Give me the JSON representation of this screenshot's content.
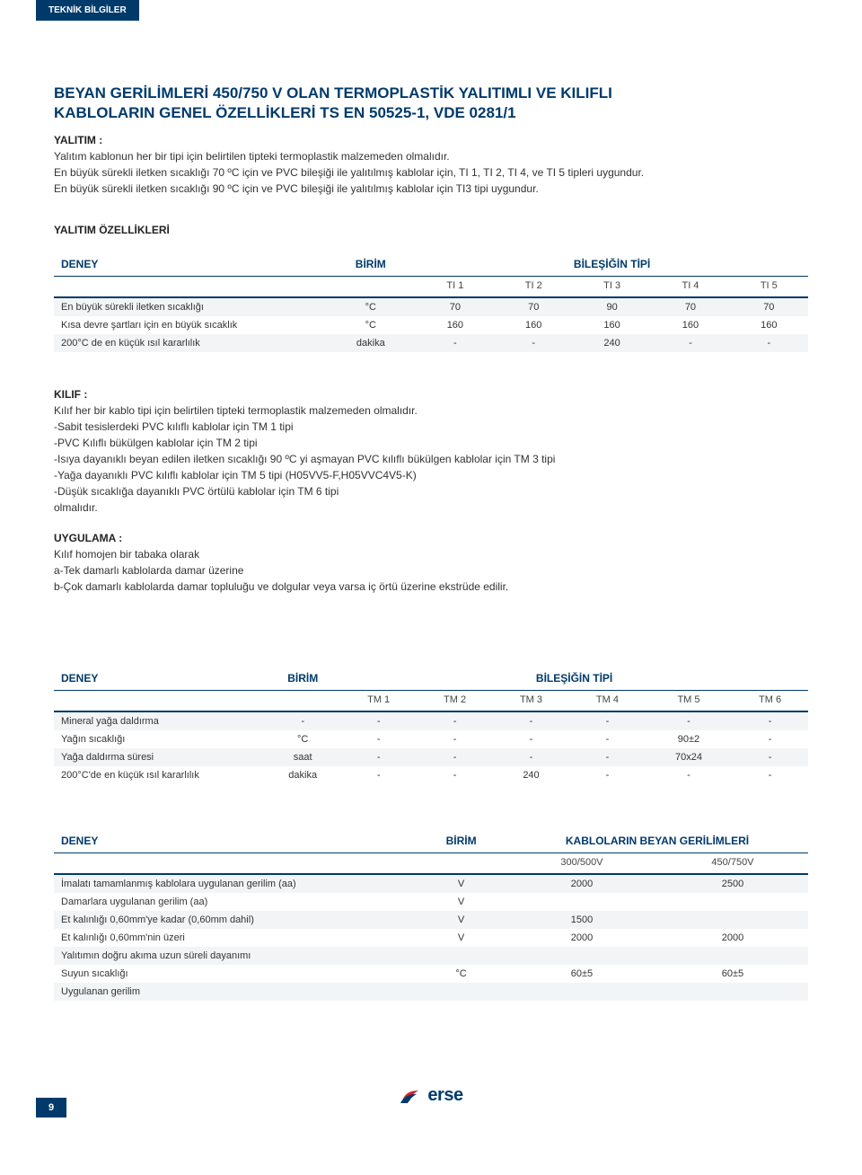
{
  "header_tab": "TEKNİK BİLGİLER",
  "title_line1": "BEYAN GERİLİMLERİ 450/750 V OLAN TERMOPLASTİK YALITIMLI VE KILIFLI",
  "title_line2": "KABLOLARIN GENEL ÖZELLİKLERİ TS EN 50525-1, VDE 0281/1",
  "yalitim_label": "YALITIM :",
  "yalitim_text": "Yalıtım kablonun her bir tipi için belirtilen tipteki termoplastik malzemeden olmalıdır.\nEn büyük sürekli iletken sıcaklığı 70 ºC için ve PVC bileşiği ile yalıtılmış kablolar için, TI 1, TI 2, TI 4, ve TI 5 tipleri uygundur.\nEn büyük sürekli iletken sıcaklığı 90 ºC için ve PVC bileşiği ile yalıtılmış kablolar için TI3 tipi uygundur.",
  "yalitim_ozel_label": "YALITIM ÖZELLİKLERİ",
  "table1": {
    "hdr_deney": "DENEY",
    "hdr_birim": "BİRİM",
    "hdr_tipi": "BİLEŞİĞİN TİPİ",
    "sub": [
      "TI 1",
      "TI 2",
      "TI 3",
      "TI 4",
      "TI 5"
    ],
    "rows": [
      {
        "label": "En büyük sürekli iletken sıcaklığı",
        "unit": "°C",
        "vals": [
          "70",
          "70",
          "90",
          "70",
          "70"
        ],
        "zebra": true
      },
      {
        "label": "Kısa devre şartları için en büyük sıcaklık",
        "unit": "°C",
        "vals": [
          "160",
          "160",
          "160",
          "160",
          "160"
        ],
        "zebra": false
      },
      {
        "label": "200°C de en küçük ısıl kararlılık",
        "unit": "dakika",
        "vals": [
          "-",
          "-",
          "240",
          "-",
          "-"
        ],
        "zebra": true
      }
    ]
  },
  "kilif_label": "KILIF :",
  "kilif_text": "Kılıf her bir kablo tipi için belirtilen tipteki termoplastik malzemeden olmalıdır.\n-Sabit tesislerdeki PVC kılıflı kablolar için TM 1 tipi\n-PVC Kılıflı bükülgen kablolar için TM 2 tipi\n-Isıya dayanıklı beyan edilen iletken sıcaklığı 90 ºC yi aşmayan PVC kılıflı bükülgen kablolar için TM 3 tipi\n-Yağa dayanıklı PVC kılıflı kablolar için TM 5 tipi (H05VV5-F,H05VVC4V5-K)\n-Düşük sıcaklığa dayanıklı PVC örtülü kablolar için TM 6 tipi\nolmalıdır.",
  "uygulama_label": "UYGULAMA :",
  "uygulama_text": "Kılıf homojen bir tabaka olarak\na-Tek damarlı kablolarda damar üzerine\nb-Çok damarlı kablolarda damar topluluğu ve dolgular veya varsa iç örtü üzerine ekstrüde edilir.",
  "table2": {
    "hdr_deney": "DENEY",
    "hdr_birim": "BİRİM",
    "hdr_tipi": "BİLEŞİĞİN TİPİ",
    "sub": [
      "TM 1",
      "TM 2",
      "TM 3",
      "TM 4",
      "TM 5",
      "TM 6"
    ],
    "rows": [
      {
        "label": "Mineral yağa daldırma",
        "unit": "-",
        "vals": [
          "-",
          "-",
          "-",
          "-",
          "-",
          "-"
        ],
        "zebra": true
      },
      {
        "label": "Yağın sıcaklığı",
        "unit": "°C",
        "vals": [
          "-",
          "-",
          "-",
          "-",
          "90±2",
          "-"
        ],
        "zebra": false
      },
      {
        "label": "Yağa daldırma süresi",
        "unit": "saat",
        "vals": [
          "-",
          "-",
          "-",
          "-",
          "70x24",
          "-"
        ],
        "zebra": true
      },
      {
        "label": "200°C'de en küçük ısıl kararlılık",
        "unit": "dakika",
        "vals": [
          "-",
          "-",
          "240",
          "-",
          "-",
          "-"
        ],
        "zebra": false
      }
    ]
  },
  "table3": {
    "hdr_deney": "DENEY",
    "hdr_birim": "BİRİM",
    "hdr_tipi": "KABLOLARIN BEYAN GERİLİMLERİ",
    "sub": [
      "300/500V",
      "450/750V"
    ],
    "rows": [
      {
        "label": "İmalatı tamamlanmış kablolara uygulanan gerilim (aa)",
        "unit": "V",
        "vals": [
          "2000",
          "2500"
        ],
        "zebra": true
      },
      {
        "label": "Damarlara uygulanan gerilim (aa)",
        "unit": "V",
        "vals": [
          "",
          ""
        ],
        "zebra": false
      },
      {
        "label": "Et kalınlığı 0,60mm'ye kadar (0,60mm dahil)",
        "unit": "V",
        "vals": [
          "1500",
          ""
        ],
        "zebra": true
      },
      {
        "label": "Et kalınlığı 0,60mm'nin üzeri",
        "unit": "V",
        "vals": [
          "2000",
          "2000"
        ],
        "zebra": false
      },
      {
        "label": "Yalıtımın doğru akıma uzun süreli dayanımı",
        "unit": "",
        "vals": [
          "",
          ""
        ],
        "zebra": true
      },
      {
        "label": "Suyun sıcaklığı",
        "unit": "°C",
        "vals": [
          "60±5",
          "60±5"
        ],
        "zebra": false
      },
      {
        "label": "Uygulanan gerilim",
        "unit": "",
        "vals": [
          "",
          ""
        ],
        "zebra": true
      }
    ]
  },
  "page_number": "9",
  "logo_text": "erse",
  "colors": {
    "brand": "#003a6b",
    "red": "#d2232a"
  }
}
